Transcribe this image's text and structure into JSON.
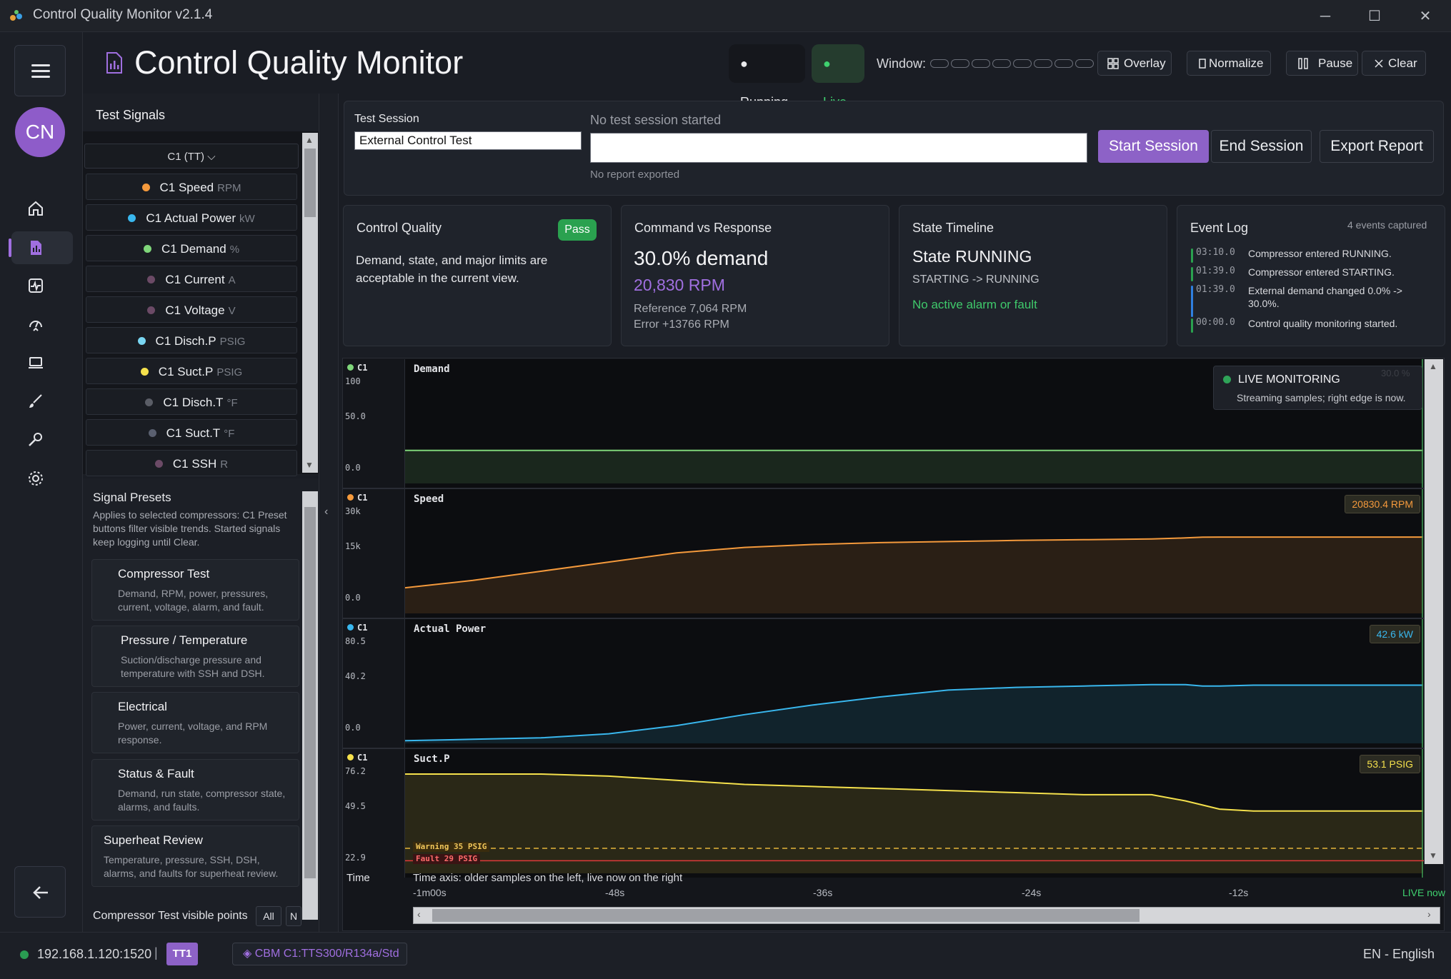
{
  "window": {
    "title": "Control Quality Monitor v2.1.4",
    "minimize": "─",
    "maximize": "☐",
    "close": "✕"
  },
  "rail": {
    "avatar_initials": "CN",
    "icons": [
      "home-icon",
      "report-icon",
      "pulse-icon",
      "gauge-icon",
      "laptop-icon",
      "brush-icon",
      "wrench-icon",
      "gear-icon"
    ]
  },
  "header": {
    "title": "Control Quality Monitor",
    "status_running": "● Running",
    "status_live": "● Live",
    "window_label": "Window:",
    "overlay": "Overlay",
    "normalize": "Normalize",
    "pause": "Pause",
    "clear": "Clear"
  },
  "signals": {
    "heading": "Test Signals",
    "selector": "C1 (TT)  ⌵",
    "items": [
      {
        "label": "C1 Speed",
        "unit": "RPM",
        "color": "#f59a3c"
      },
      {
        "label": "C1 Actual Power",
        "unit": "kW",
        "color": "#39b7ee"
      },
      {
        "label": "C1 Demand",
        "unit": "%",
        "color": "#7fd67a"
      },
      {
        "label": "C1 Current",
        "unit": "A",
        "color": "#6b4a66"
      },
      {
        "label": "C1 Voltage",
        "unit": "V",
        "color": "#6b4a66"
      },
      {
        "label": "C1 Disch.P",
        "unit": "PSIG",
        "color": "#79d6f2"
      },
      {
        "label": "C1 Suct.P",
        "unit": "PSIG",
        "color": "#f5e14c"
      },
      {
        "label": "C1 Disch.T",
        "unit": "°F",
        "color": "#5a5d66"
      },
      {
        "label": "C1 Suct.T",
        "unit": "°F",
        "color": "#5a6070"
      },
      {
        "label": "C1 SSH",
        "unit": "R",
        "color": "#6b4a66"
      }
    ]
  },
  "presets": {
    "title": "Signal Presets",
    "description": "Applies to selected compressors: C1 Preset buttons filter visible trends. Started signals keep logging until Clear.",
    "cards": [
      {
        "title": "Compressor Test",
        "desc": "Demand, RPM, power, pressures, current, voltage, alarm, and fault."
      },
      {
        "title": "Pressure / Temperature",
        "desc": "Suction/discharge pressure and temperature with SSH and DSH."
      },
      {
        "title": "Electrical",
        "desc": "Power, current, voltage, and RPM response."
      },
      {
        "title": "Status & Fault",
        "desc": "Demand, run state, compressor state, alarms, and faults."
      },
      {
        "title": "Superheat Review",
        "desc": "Temperature, pressure, SSH, DSH, alarms, and faults for superheat review."
      }
    ],
    "visible_points": "Compressor Test visible points",
    "all": "All",
    "n": "N"
  },
  "session": {
    "label": "Test Session",
    "name_value": "External Control Test",
    "status": "No test session started",
    "report_status": "No report exported",
    "start": "Start Session",
    "end": "End Session",
    "export": "Export Report"
  },
  "kpis": {
    "control_quality": {
      "title": "Control Quality",
      "badge": "Pass",
      "text": "Demand, state, and major limits are acceptable in the current view."
    },
    "command_response": {
      "title": "Command vs Response",
      "demand": "30.0% demand",
      "rpm": "20,830 RPM",
      "reference": "Reference 7,064 RPM",
      "error": "Error +13766 RPM"
    },
    "state_timeline": {
      "title": "State Timeline",
      "state": "State RUNNING",
      "transition": "STARTING -> RUNNING",
      "alarm": "No active alarm or fault"
    },
    "event_log": {
      "title": "Event Log",
      "count": "4 events captured",
      "events": [
        {
          "time": "03:10.0",
          "message": "Compressor entered RUNNING.",
          "color": "#2aa14f"
        },
        {
          "time": "01:39.0",
          "message": "Compressor entered STARTING.",
          "color": "#2aa14f"
        },
        {
          "time": "01:39.0",
          "message": "External demand changed 0.0% -> 30.0%.",
          "color": "#2f7fe0"
        },
        {
          "time": "00:00.0",
          "message": "Control quality monitoring started.",
          "color": "#2aa14f"
        }
      ]
    }
  },
  "live_monitor": {
    "title": "LIVE MONITORING",
    "subtitle": "Streaming samples; right edge is now.",
    "demand_value": "30.0 %"
  },
  "lanes": [
    {
      "sig": "C1",
      "title": "Demand",
      "color": "#7fd67a",
      "ticks": [
        "100",
        "50.0",
        "0.0"
      ],
      "value_label": "",
      "ymin": 0,
      "ymax": 100
    },
    {
      "sig": "C1",
      "title": "Speed",
      "color": "#f59a3c",
      "ticks": [
        "30k",
        "15k",
        "0.0"
      ],
      "value_label": "20830.4 RPM",
      "ymin": 0,
      "ymax": 30000
    },
    {
      "sig": "C1",
      "title": "Actual Power",
      "color": "#39b7ee",
      "ticks": [
        "80.5",
        "40.2",
        "0.0"
      ],
      "value_label": "42.6 kW",
      "ymin": 0,
      "ymax": 80.5
    },
    {
      "sig": "C1",
      "title": "Suct.P",
      "color": "#f5e14c",
      "ticks": [
        "76.2",
        "49.5",
        "22.9"
      ],
      "value_label": "53.1 PSIG",
      "ymin": 22.9,
      "ymax": 76.2
    }
  ],
  "thresholds": {
    "warning": {
      "label": "Warning 35 PSIG",
      "value": 35,
      "color": "#e5b63a"
    },
    "fault": {
      "label": "Fault 29 PSIG",
      "value": 29,
      "color": "#e03a3a"
    }
  },
  "chart_data": {
    "type": "line",
    "x": [
      -60,
      -56,
      -52,
      -48,
      -44,
      -40,
      -36,
      -32,
      -28,
      -24,
      -20,
      -16,
      -14,
      -13,
      -12,
      -10,
      -8,
      -4,
      0
    ],
    "xlabel": "Time",
    "series": [
      {
        "name": "Demand",
        "values": [
          30,
          30,
          30,
          30,
          30,
          30,
          30,
          30,
          30,
          30,
          30,
          30,
          30,
          30,
          30,
          30,
          30,
          30,
          30
        ]
      },
      {
        "name": "Speed",
        "values": [
          7000,
          9000,
          11500,
          14000,
          16500,
          18000,
          18800,
          19300,
          19600,
          19900,
          20100,
          20300,
          20600,
          20800,
          20830,
          20830,
          20830,
          20830,
          20830
        ]
      },
      {
        "name": "Actual Power",
        "values": [
          2,
          3,
          4,
          7,
          13,
          21,
          28,
          34,
          39,
          41,
          42,
          43,
          43,
          42,
          42,
          42.6,
          42.6,
          42.6,
          42.6
        ]
      },
      {
        "name": "Suct.P",
        "values": [
          71,
          71,
          71,
          70,
          68,
          66,
          65,
          64,
          63,
          62,
          61,
          61,
          58,
          56,
          54,
          53.1,
          53.1,
          53.1,
          53.1
        ]
      }
    ]
  },
  "time_axis": {
    "label": "Time",
    "caption": "Time axis: older samples on the left, live now on the right",
    "ticks": [
      "-1m00s",
      "-48s",
      "-36s",
      "-24s",
      "-12s"
    ],
    "live": "LIVE now"
  },
  "statusbar": {
    "connection": "192.168.1.120:1520",
    "separator": "|",
    "tt": "TT1",
    "cbm": "◈ CBM C1:TTS300/R134a/Std",
    "language": "EN - English"
  }
}
